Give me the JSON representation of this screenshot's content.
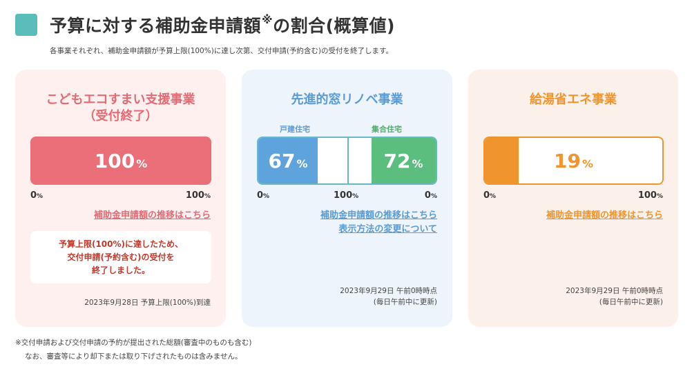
{
  "header": {
    "title": "予算に対する補助金申請額",
    "title_mark": "※",
    "title_suffix": "の割合(概算値)",
    "subtitle": "各事業それぞれ、補助金申請額が予算上限(100%)に達し次第、交付申請(予約含む)の受付を終了します。"
  },
  "cards": [
    {
      "title_line1": "こどもエコすまい支援事業",
      "title_line2": "（受付終了）",
      "percent": "100",
      "percent_unit": "%",
      "fill_fraction": 1.0,
      "axis_min": "0",
      "axis_max": "100",
      "axis_unit": "%",
      "link": "補助金申請額の推移はこちら",
      "notice_line1": "予算上限(100%)に達したため、",
      "notice_line2": "交付申請(予約含む)の受付を",
      "notice_line3": "終了しました。",
      "date": "2023年9月28日 予算上限(100%)到達"
    },
    {
      "title": "先進的窓リノベ事業",
      "left_label": "戸建住宅",
      "right_label": "集合住宅",
      "left_percent": "67",
      "right_percent": "72",
      "percent_unit": "%",
      "left_fill_fraction": 0.67,
      "right_fill_fraction": 0.72,
      "axis_left": "0",
      "axis_mid": "100",
      "axis_right": "0",
      "axis_unit": "%",
      "link1": "補助金申請額の推移はこちら",
      "link2": "表示方法の変更について",
      "date_line1": "2023年9月29日 午前0時時点",
      "date_line2": "(毎日午前中に更新)"
    },
    {
      "title": "給湯省エネ事業",
      "percent": "19",
      "percent_unit": "%",
      "fill_fraction": 0.19,
      "axis_min": "0",
      "axis_max": "100",
      "axis_unit": "%",
      "link": "補助金申請額の推移はこちら",
      "date_line1": "2023年9月29日 午前0時時点",
      "date_line2": "(毎日午前中に更新)"
    }
  ],
  "footnote": {
    "line1": "※交付申請および交付申請の予約が提出された総額(審査中のものも含む)",
    "line2": "なお、審査等により却下または取り下げされたものは含みません。"
  },
  "colors": {
    "accent_teal": "#5bbdba",
    "eco_red": "#eb6f79",
    "window_blue": "#5fa3dc",
    "window_green": "#5bbd7e",
    "water_orange": "#f0952e"
  }
}
